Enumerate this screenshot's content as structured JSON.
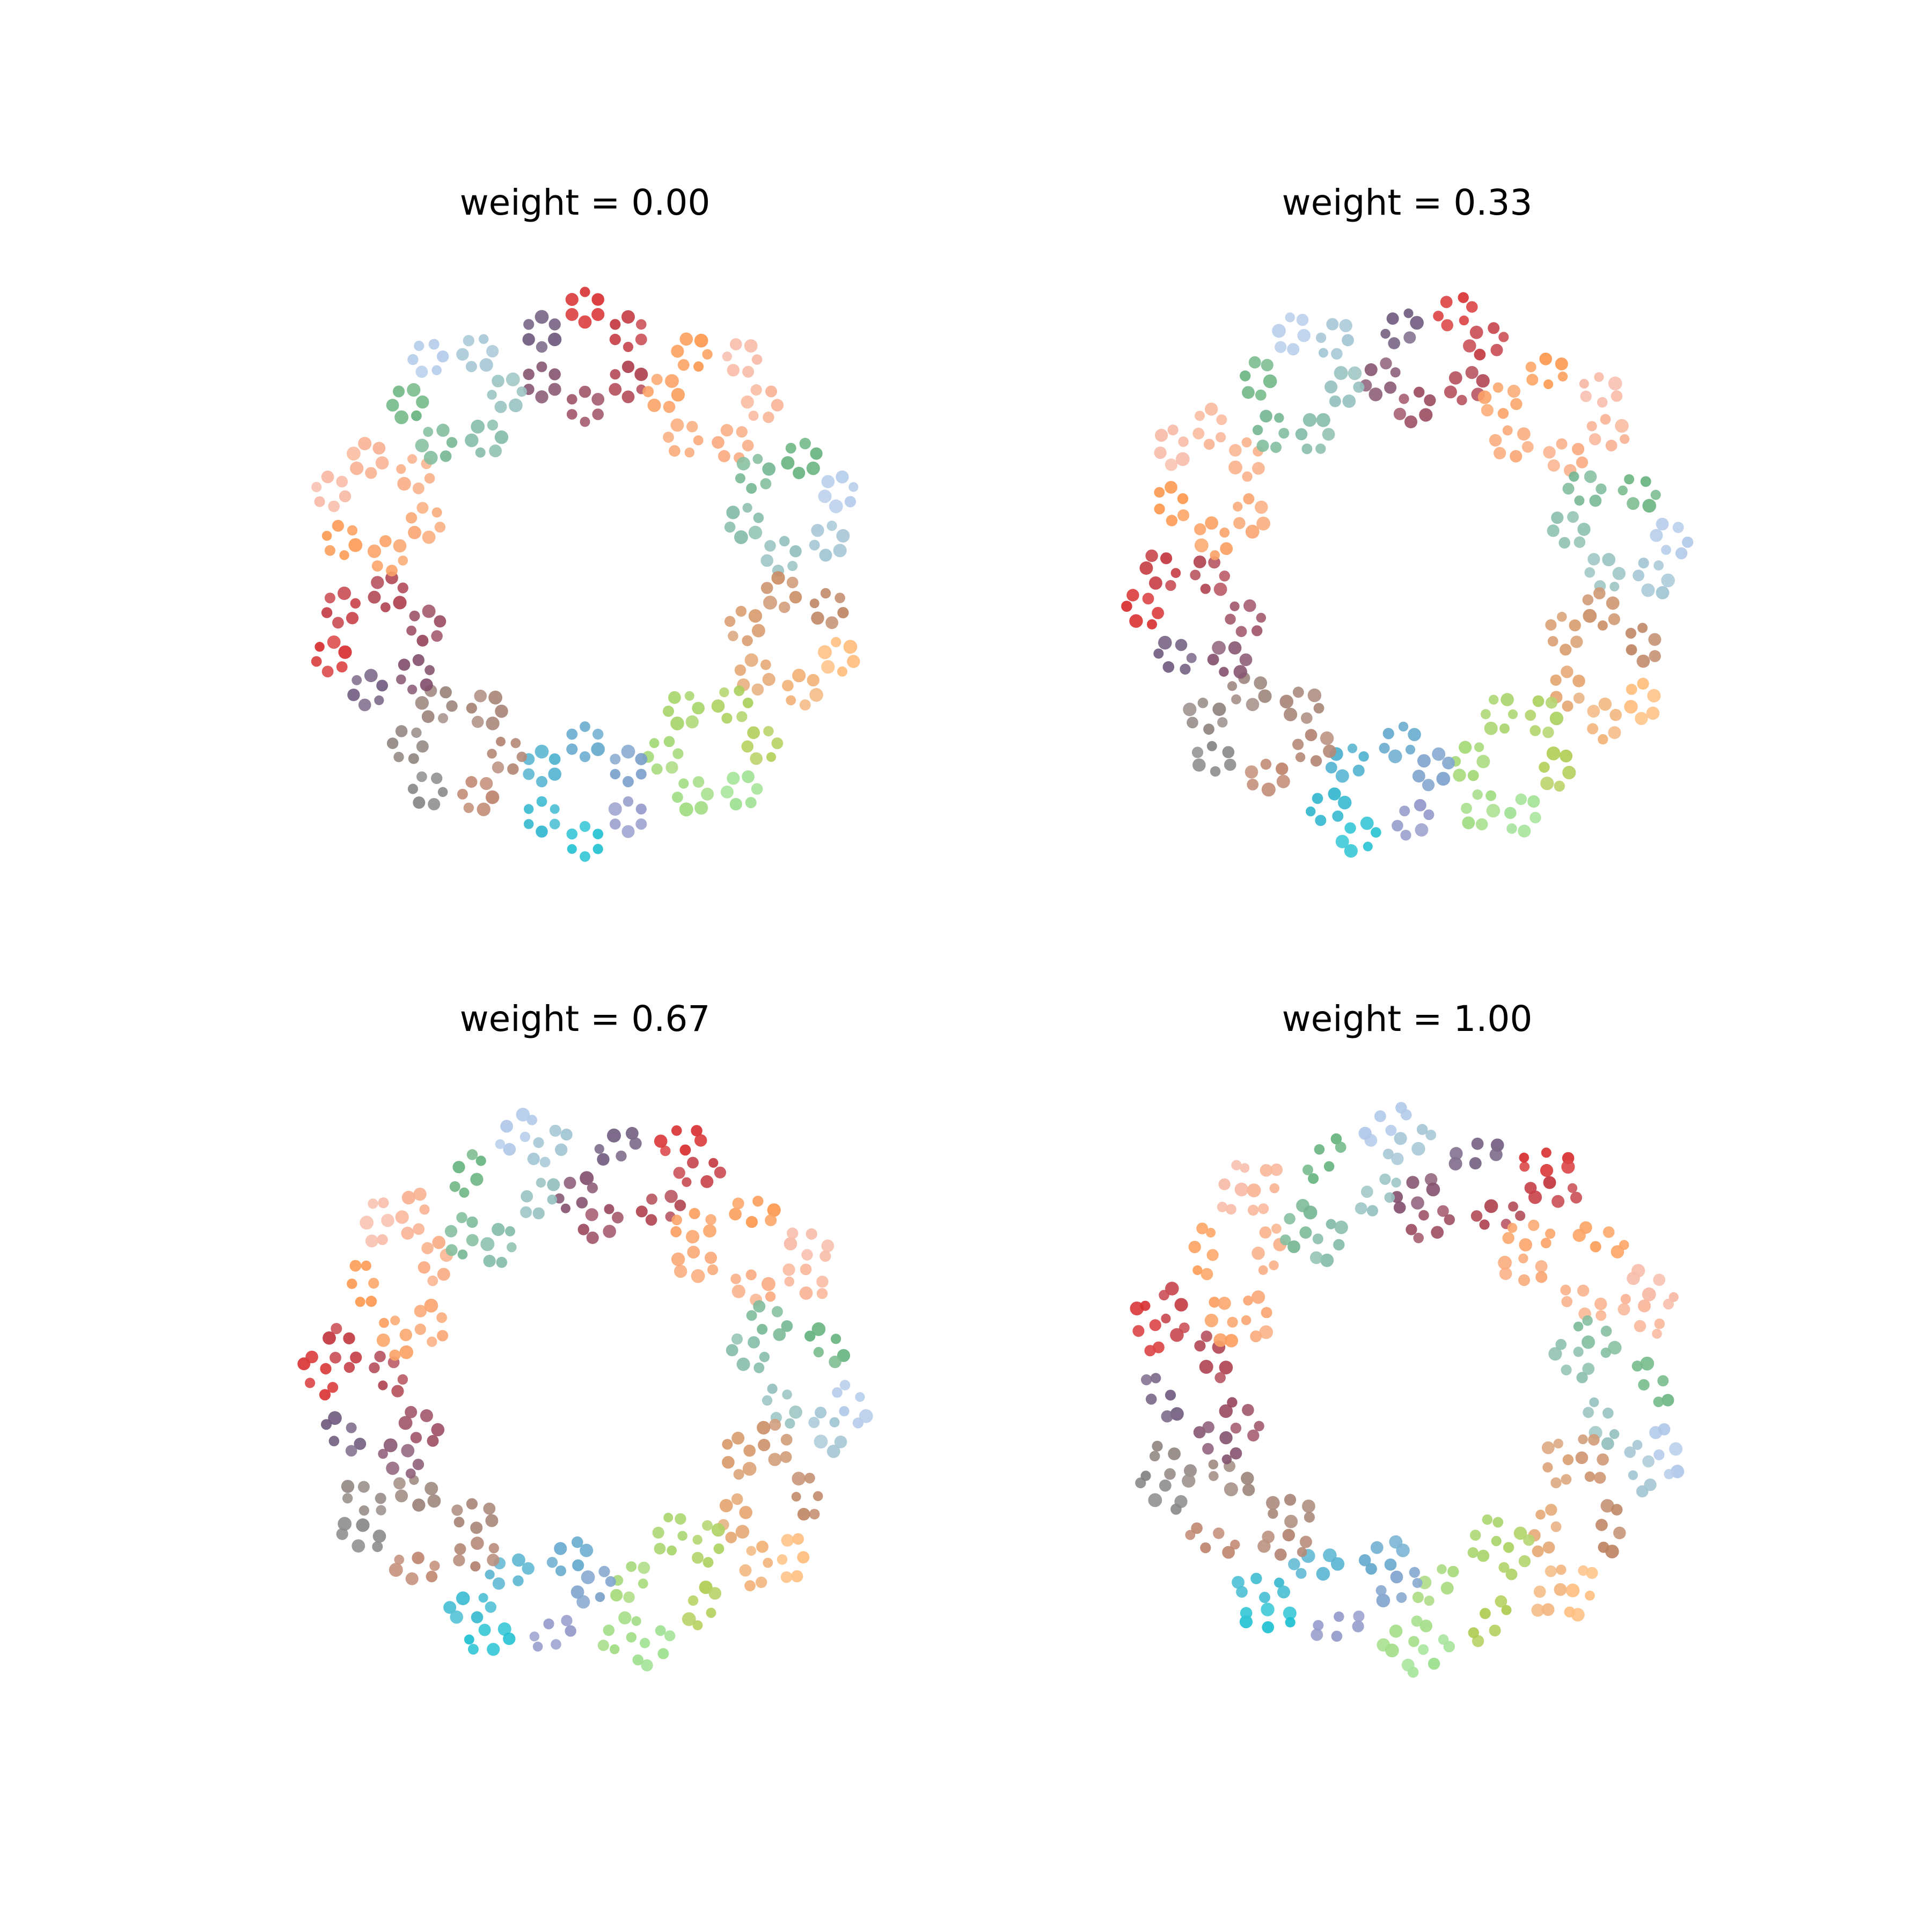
{
  "panels": [
    {
      "title": "weight = 0.00",
      "weight": 0.0
    },
    {
      "title": "weight = 0.33",
      "weight": 0.33
    },
    {
      "title": "weight = 0.67",
      "weight": 0.67
    },
    {
      "title": "weight = 1.00",
      "weight": 1.0
    }
  ],
  "palette": [
    "#d62728",
    "#e8825a",
    "#f7b6a2",
    "#1f77b4",
    "#aec7e8",
    "#ff7f0e",
    "#ffbb78",
    "#2ca02c",
    "#98df8a",
    "#8c564b",
    "#17becf",
    "#bcbd22",
    "#7f7f7f",
    "#e377c2"
  ]
}
